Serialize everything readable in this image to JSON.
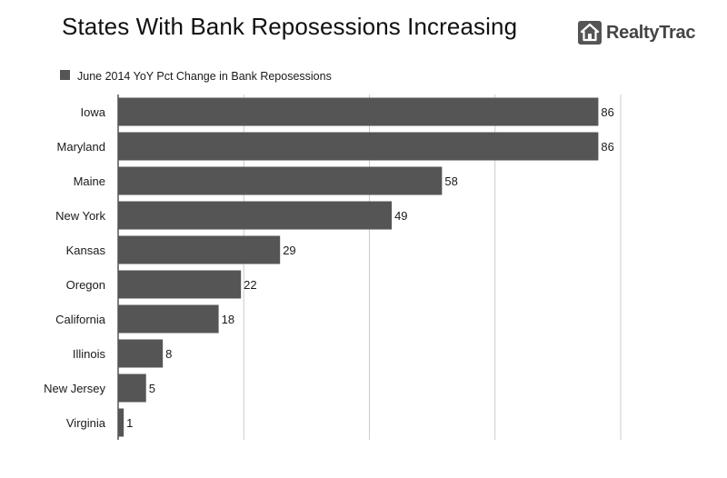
{
  "header": {
    "title": "States With Bank Reposessions Increasing",
    "logo_text": "RealtyTrac",
    "logo_icon": "house-icon"
  },
  "colors": {
    "bar": "#555555",
    "grid": "#cccccc",
    "axis": "#555555",
    "logo_box": "#555555"
  },
  "chart_data": {
    "type": "bar",
    "orientation": "horizontal",
    "title": "States With Bank Reposessions Increasing",
    "xlabel": "",
    "ylabel": "",
    "categories": [
      "Iowa",
      "Maryland",
      "Maine",
      "New York",
      "Kansas",
      "Oregon",
      "California",
      "Illinois",
      "New Jersey",
      "Virginia"
    ],
    "series": [
      {
        "name": "June 2014 YoY Pct Change in Bank Reposessions",
        "values": [
          86,
          86,
          58,
          49,
          29,
          22,
          18,
          8,
          5,
          1
        ]
      }
    ],
    "xlim": [
      0,
      90
    ],
    "grid_step": 22.5,
    "grid": true,
    "legend": "top-left",
    "data_labels": true
  }
}
